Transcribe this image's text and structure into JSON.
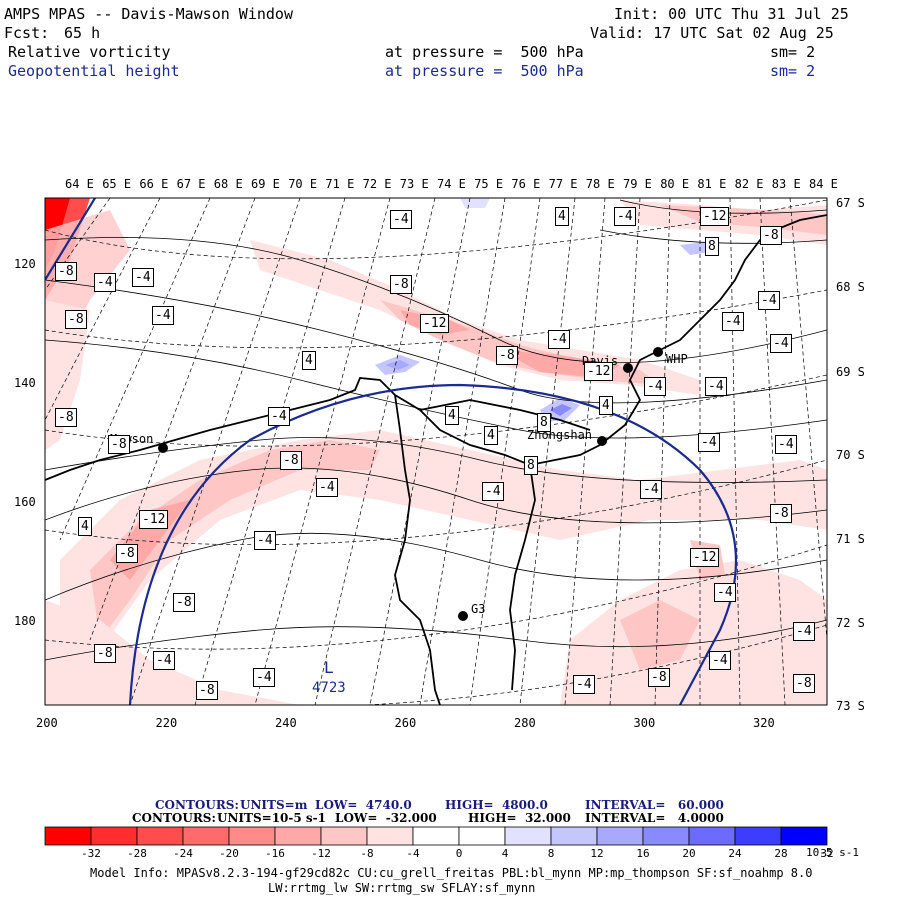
{
  "header": {
    "title": "AMPS MPAS -- Davis-Mawson Window",
    "fcst_label": "Fcst:",
    "fcst_value": "65 h",
    "init": "Init: 00 UTC Thu 31 Jul 25",
    "valid": "Valid: 17 UTC Sat 02 Aug 25",
    "field1": {
      "name": "Relative vorticity",
      "level": "at pressure =  500 hPa",
      "sm": "sm= 2"
    },
    "field2": {
      "name": "Geopotential height",
      "level": "at pressure =  500 hPa",
      "sm": "sm= 2"
    }
  },
  "axes": {
    "top_lon": [
      "64 E",
      "65 E",
      "66 E",
      "67 E",
      "68 E",
      "69 E",
      "70 E",
      "71 E",
      "72 E",
      "73 E",
      "74 E",
      "75 E",
      "76 E",
      "77 E",
      "78 E",
      "79 E",
      "80 E",
      "81 E",
      "82 E",
      "83 E",
      "84 E"
    ],
    "right_lat": [
      "67 S",
      "68 S",
      "69 S",
      "70 S",
      "71 S",
      "72 S",
      "73 S"
    ],
    "left_y": [
      "120",
      "140",
      "160",
      "180"
    ],
    "bottom_x": [
      "200",
      "220",
      "240",
      "260",
      "280",
      "300",
      "320"
    ]
  },
  "stations": [
    {
      "name": "Mawson"
    },
    {
      "name": "Davis"
    },
    {
      "name": "WHP"
    },
    {
      "name": "Zhongshan"
    },
    {
      "name": "G3"
    }
  ],
  "contour_labels": [
    "-4",
    "-8",
    "-12",
    "4",
    "8"
  ],
  "low_center": {
    "mark": "L",
    "value": "4723"
  },
  "footer": {
    "contours_height": {
      "label": "CONTOURS:",
      "units": "UNITS=m",
      "low": "LOW=  4740.0",
      "high": "HIGH=  4800.0",
      "interval": "INTERVAL=   60.000"
    },
    "contours_vort": {
      "label": "CONTOURS:",
      "units": "UNITS=10-5 s-1",
      "low": "LOW=  -32.000",
      "high": "HIGH=  32.000",
      "interval": "INTERVAL=   4.0000"
    },
    "colorbar_ticks": [
      "-32",
      "-28",
      "-24",
      "-20",
      "-16",
      "-12",
      "-8",
      "-4",
      "0",
      "4",
      "8",
      "12",
      "16",
      "20",
      "24",
      "28",
      "32"
    ],
    "colorbar_unit": "10-5 s-1",
    "colorbar_colors": [
      "#ff0000",
      "#ff2d2d",
      "#ff4d4d",
      "#ff6b6b",
      "#ff8a8a",
      "#ffa8a8",
      "#ffc6c6",
      "#ffe2e2",
      "#ffffff",
      "#ffffff",
      "#e2e2ff",
      "#c6c6ff",
      "#a8a8ff",
      "#8a8aff",
      "#6b6bff",
      "#3d3dff",
      "#0000ff"
    ],
    "model_info_1": "Model Info: MPASv8.2.3-194-gf29cd82c CU:cu_grell_freitas PBL:bl_mynn MP:mp_thompson SF:sf_noahmp 8.0",
    "model_info_2": "LW:rrtmg_lw SW:rrtmg_sw SFLAY:sf_mynn"
  }
}
